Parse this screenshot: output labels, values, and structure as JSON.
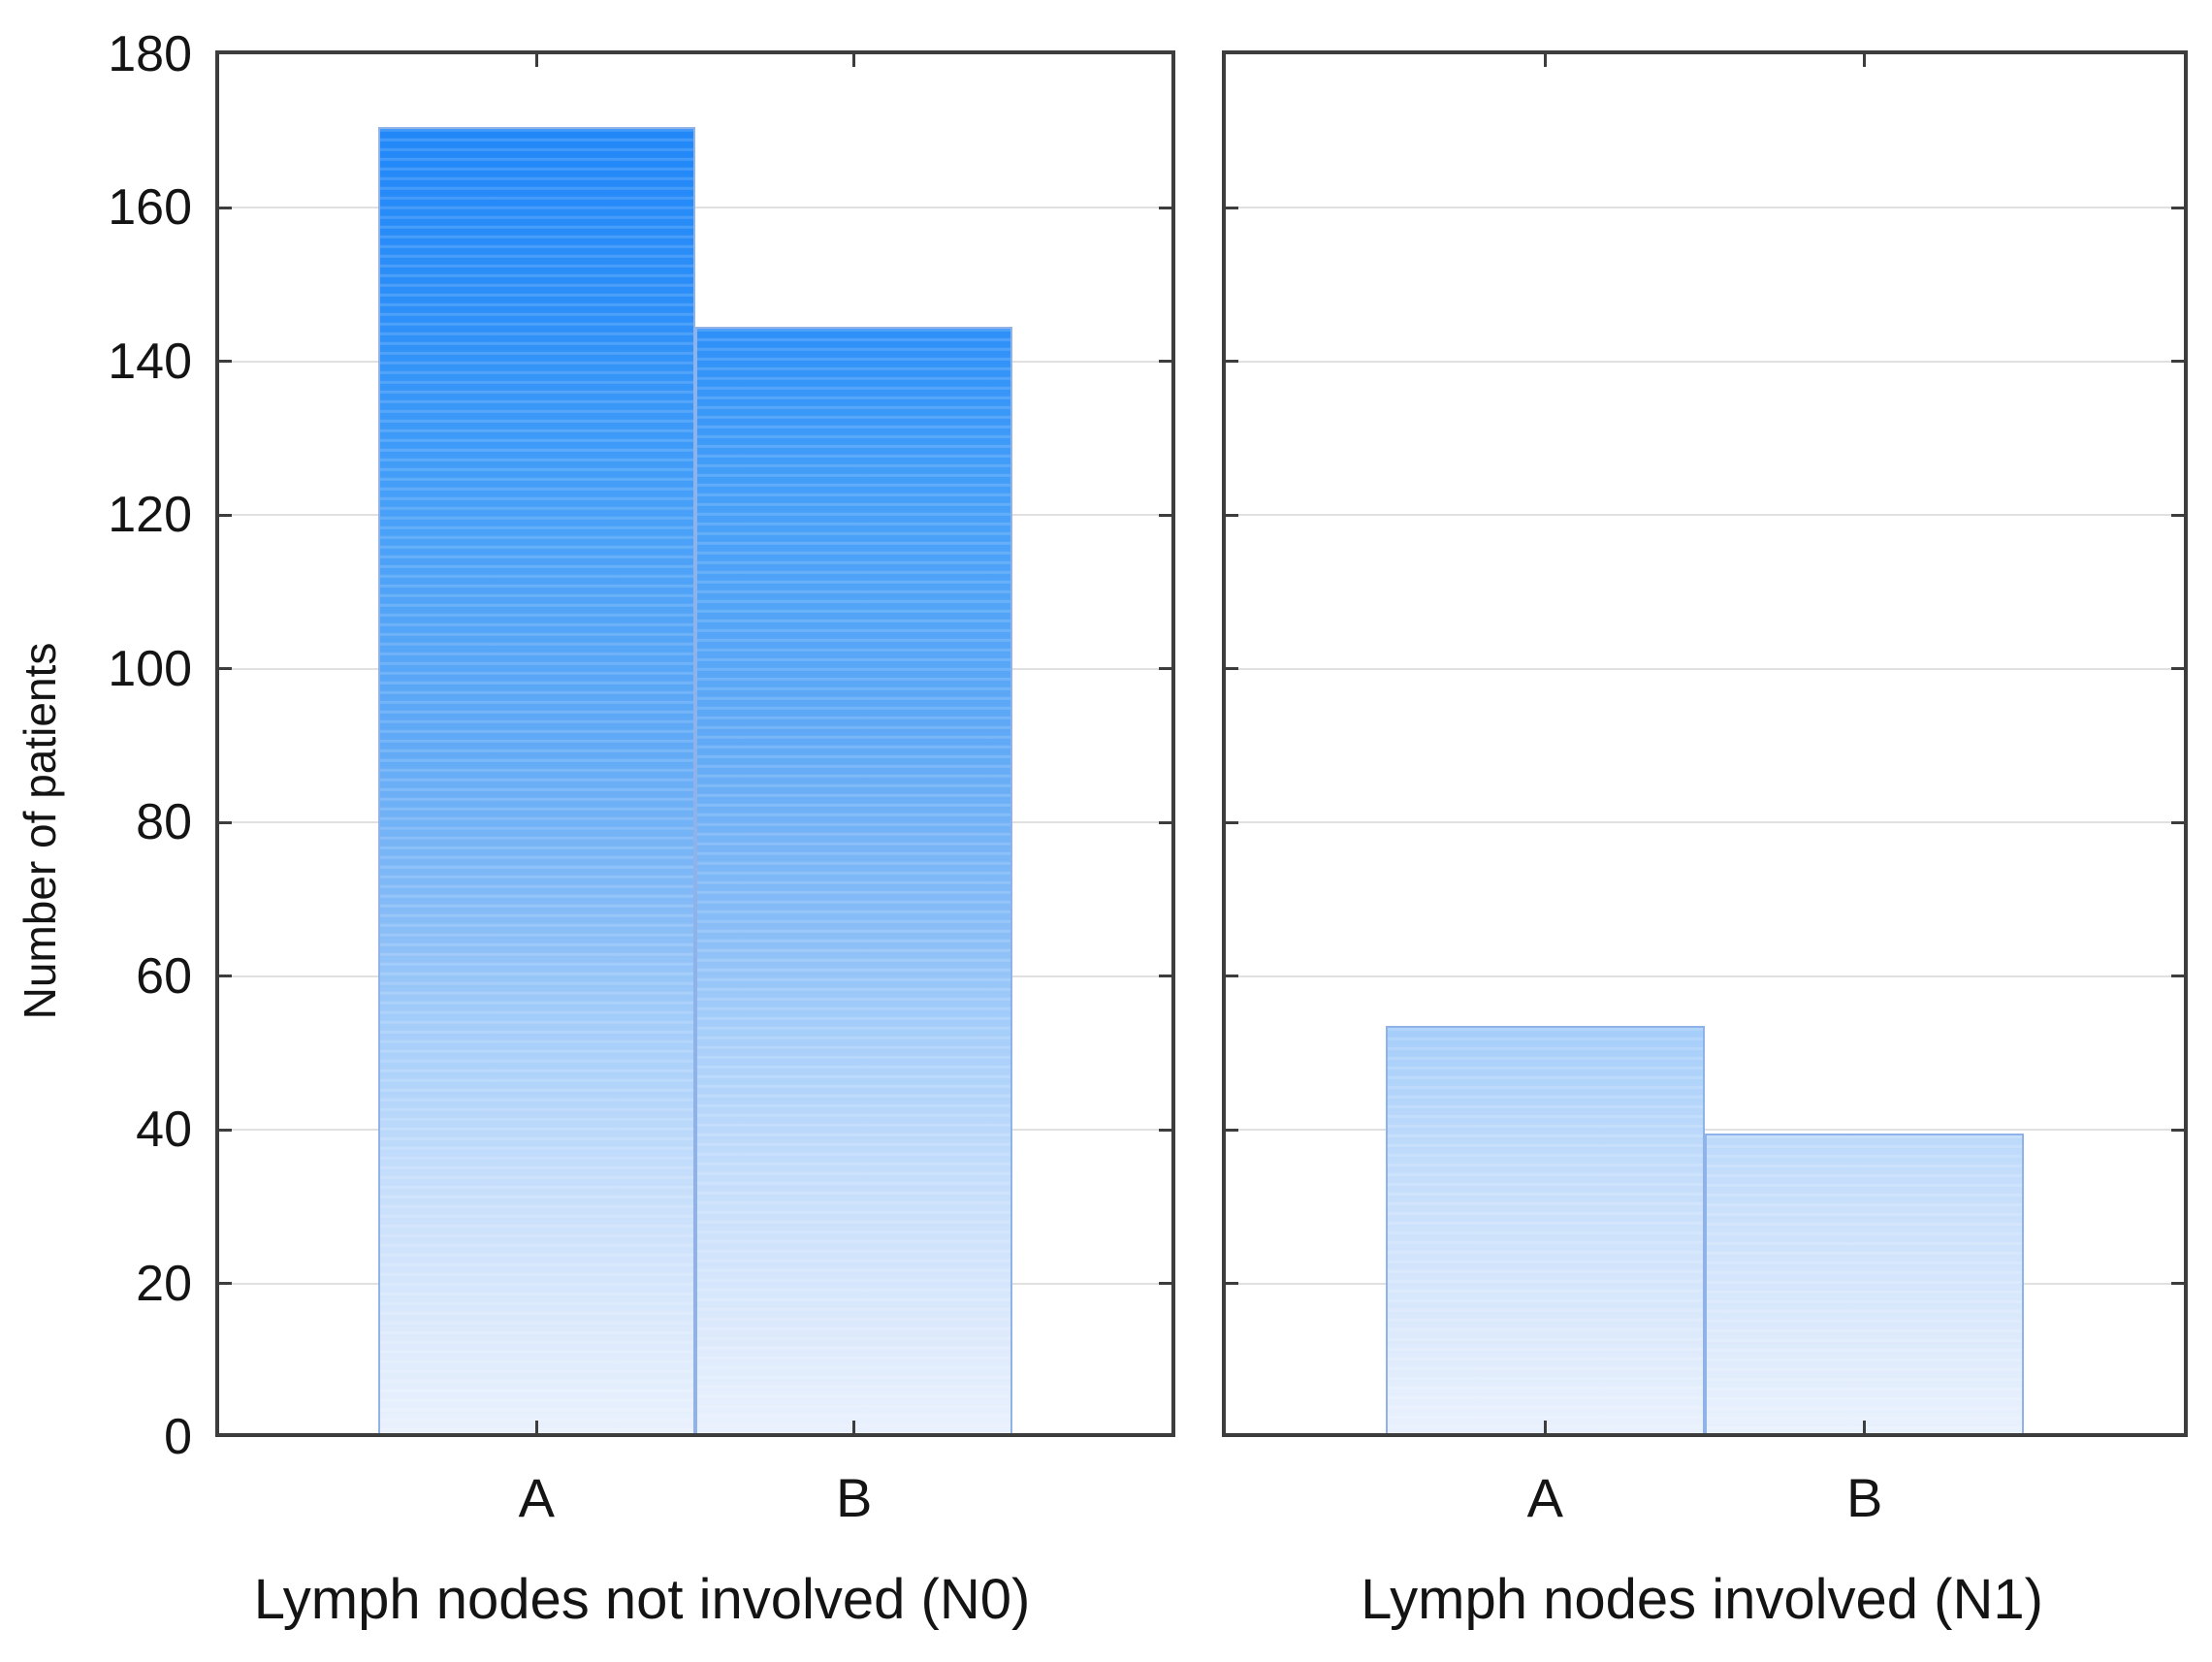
{
  "chart_data": {
    "type": "bar",
    "title": "",
    "ylabel": "Number of patients",
    "ylim": [
      0,
      180
    ],
    "ytick_step": 20,
    "yticks": [
      0,
      20,
      40,
      60,
      80,
      100,
      120,
      140,
      160,
      180
    ],
    "categories": [
      "A",
      "B"
    ],
    "panels": [
      {
        "xlabel": "Lymph nodes not involved (N0)",
        "values": [
          170,
          144
        ]
      },
      {
        "xlabel": "Lymph nodes involved (N1)",
        "values": [
          53,
          39
        ]
      }
    ],
    "grid": "horizontal gridlines every 20, bars drawn over gridlines",
    "legend": "none",
    "bar_style": "vertical gradient anchored to axis (deep blue at 180 fading to near-white at 0) with subtle horizontal stripe texture",
    "colors": {
      "bar_gradient_stops": [
        [
          "0%",
          "#1d84f8"
        ],
        [
          "20%",
          "#2e90f8"
        ],
        [
          "33%",
          "#47a0f8"
        ],
        [
          "50%",
          "#60a9f6"
        ],
        [
          "64%",
          "#8abef7"
        ],
        [
          "71%",
          "#a6cefa"
        ],
        [
          "82%",
          "#c6defb"
        ],
        [
          "93%",
          "#ddeafc"
        ],
        [
          "100%",
          "#e9f1fd"
        ]
      ],
      "bar_border": "#8fb2e9",
      "frame": "#3d3d3d",
      "gridline": "#e0e0e0",
      "text": "#141414",
      "background": "#ffffff"
    }
  }
}
